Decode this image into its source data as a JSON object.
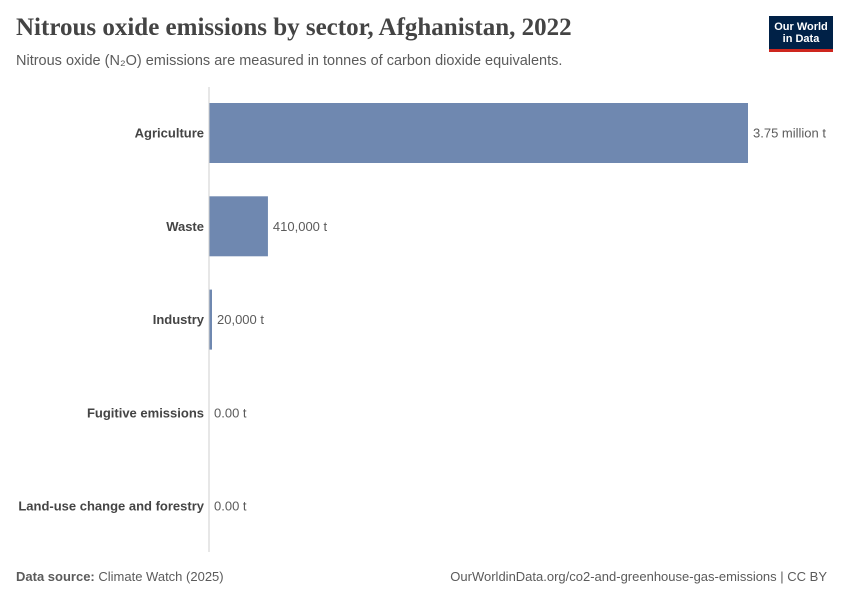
{
  "header": {
    "title": "Nitrous oxide emissions by sector, Afghanistan, 2022",
    "subtitle": "Nitrous oxide (N₂O) emissions are measured in tonnes of carbon dioxide equivalents.",
    "logo_line1": "Our World",
    "logo_line2": "in Data"
  },
  "chart_data": {
    "type": "bar",
    "orientation": "horizontal",
    "title": "Nitrous oxide emissions by sector, Afghanistan, 2022",
    "xlabel": "",
    "ylabel": "",
    "unit": "tonnes of CO2 equivalents",
    "categories": [
      "Agriculture",
      "Waste",
      "Industry",
      "Fugitive emissions",
      "Land-use change and forestry"
    ],
    "values": [
      3750000,
      410000,
      20000,
      0,
      0
    ],
    "value_labels": [
      "3.75 million t",
      "410,000 t",
      "20,000 t",
      "0.00 t",
      "0.00 t"
    ],
    "xlim": [
      0,
      3750000
    ],
    "grid": false,
    "color": "#6f88b0"
  },
  "footer": {
    "source_prefix": "Data source:",
    "source": "Climate Watch (2025)",
    "url_license": "OurWorldinData.org/co2-and-greenhouse-gas-emissions | CC BY"
  }
}
